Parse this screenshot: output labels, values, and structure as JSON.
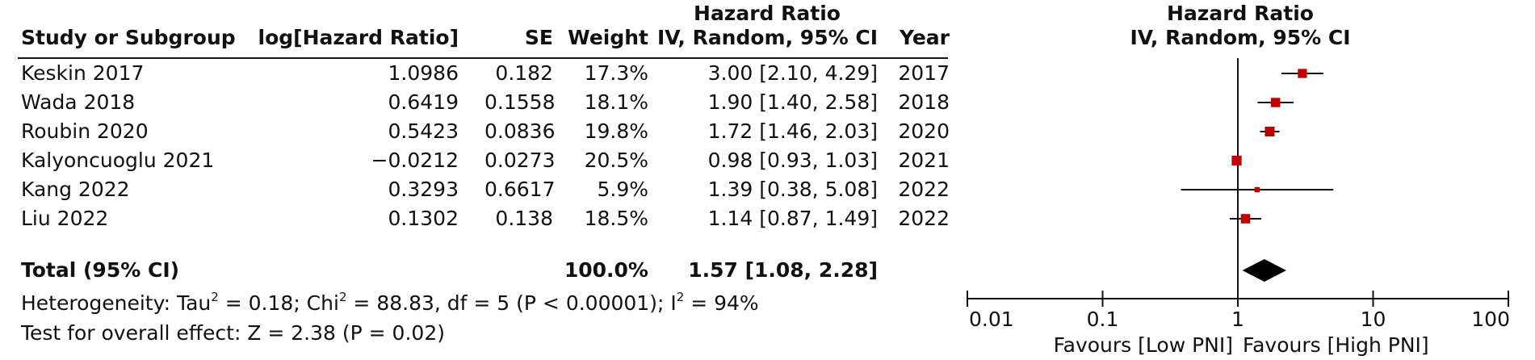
{
  "header": {
    "group_top": "Hazard Ratio",
    "study": "Study or Subgroup",
    "loghr": "log[Hazard Ratio]",
    "se": "SE",
    "weight": "Weight",
    "hr": "IV, Random, 95% CI",
    "year": "Year",
    "plot_top": "Hazard Ratio",
    "plot_sub": "IV, Random, 95% CI"
  },
  "studies": [
    {
      "name": "Keskin 2017",
      "loghr": "1.0986",
      "se": "0.182",
      "weight": "17.3%",
      "ci": "3.00 [2.10, 4.29]",
      "year": "2017"
    },
    {
      "name": "Wada 2018",
      "loghr": "0.6419",
      "se": "0.1558",
      "weight": "18.1%",
      "ci": "1.90 [1.40, 2.58]",
      "year": "2018"
    },
    {
      "name": "Roubin 2020",
      "loghr": "0.5423",
      "se": "0.0836",
      "weight": "19.8%",
      "ci": "1.72 [1.46, 2.03]",
      "year": "2020"
    },
    {
      "name": "Kalyoncuoglu 2021",
      "loghr": "−0.0212",
      "se": "0.0273",
      "weight": "20.5%",
      "ci": "0.98 [0.93, 1.03]",
      "year": "2021"
    },
    {
      "name": "Kang 2022",
      "loghr": "0.3293",
      "se": "0.6617",
      "weight": "5.9%",
      "ci": "1.39 [0.38, 5.08]",
      "year": "2022"
    },
    {
      "name": "Liu 2022",
      "loghr": "0.1302",
      "se": "0.138",
      "weight": "18.5%",
      "ci": "1.14 [0.87, 1.49]",
      "year": "2022"
    }
  ],
  "total": {
    "label": "Total (95% CI)",
    "weight": "100.0%",
    "ci": "1.57 [1.08, 2.28]"
  },
  "heterogeneity": {
    "prefix": "Heterogeneity: Tau",
    "sup1": "2",
    "mid": " = 0.18; Chi",
    "sup2": "2",
    "mid2": " = 88.83, df = 5 (P < 0.00001); I",
    "sup3": "2",
    "end": " = 94%"
  },
  "overall_effect": "Test for overall effect: Z = 2.38 (P = 0.02)",
  "colors": {
    "marker": "#c00000",
    "line": "#111111"
  },
  "chart_data": {
    "type": "forest",
    "title": "Hazard Ratio",
    "subtitle": "IV, Random, 95% CI",
    "x_scale": "log",
    "xlim": [
      0.01,
      100
    ],
    "x_ticks": [
      0.01,
      0.1,
      1,
      10,
      100
    ],
    "x_tick_labels": [
      "0.01",
      "0.1",
      "1",
      "10",
      "100"
    ],
    "reference_line": 1,
    "favours_left": "Favours [Low PNI]",
    "favours_right": "Favours [High PNI]",
    "points": [
      {
        "label": "Keskin 2017",
        "hr": 3.0,
        "lo": 2.1,
        "hi": 4.29,
        "weight": 17.3
      },
      {
        "label": "Wada 2018",
        "hr": 1.9,
        "lo": 1.4,
        "hi": 2.58,
        "weight": 18.1
      },
      {
        "label": "Roubin 2020",
        "hr": 1.72,
        "lo": 1.46,
        "hi": 2.03,
        "weight": 19.8
      },
      {
        "label": "Kalyoncuoglu 2021",
        "hr": 0.98,
        "lo": 0.93,
        "hi": 1.03,
        "weight": 20.5
      },
      {
        "label": "Kang 2022",
        "hr": 1.39,
        "lo": 0.38,
        "hi": 5.08,
        "weight": 5.9
      },
      {
        "label": "Liu 2022",
        "hr": 1.14,
        "lo": 0.87,
        "hi": 1.49,
        "weight": 18.5
      }
    ],
    "pooled": {
      "label": "Total (95% CI)",
      "hr": 1.57,
      "lo": 1.08,
      "hi": 2.28
    }
  }
}
